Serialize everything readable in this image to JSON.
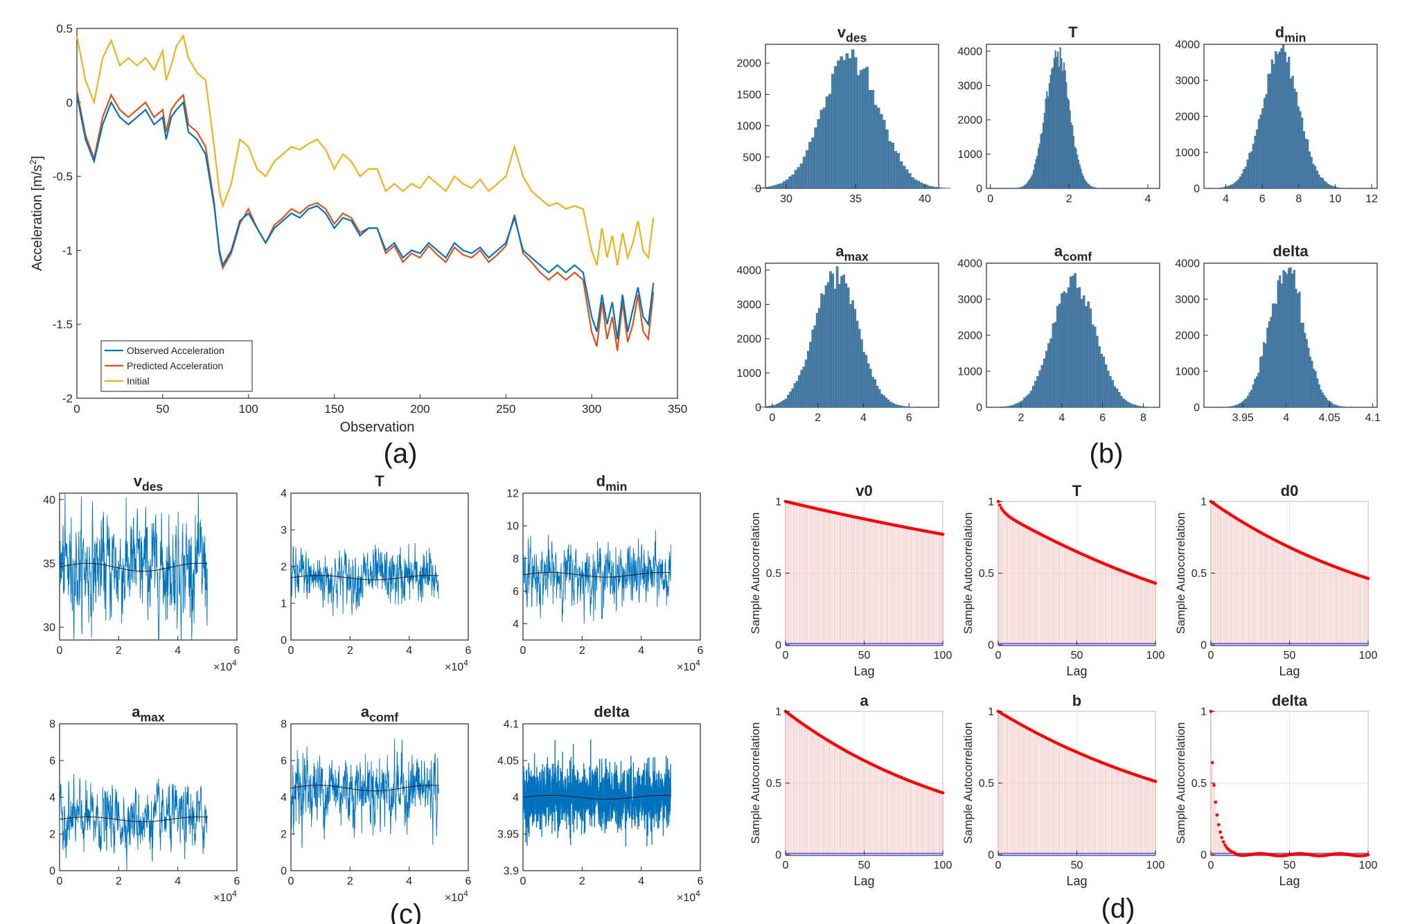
{
  "colors": {
    "observed": "#0072BD",
    "predicted": "#D95319",
    "initial": "#EDB120",
    "hist_fill": "#4A7FA8",
    "trace": "#0072BD",
    "acf_stem": "#FF0000",
    "acf_bound": "#7E7ACB"
  },
  "panel_labels": [
    "(a)",
    "(b)",
    "(c)",
    "(d)"
  ],
  "chart_data": [
    {
      "id": "a",
      "type": "line",
      "xlabel": "Observation",
      "ylabel": "Acceleration [m/s^2]",
      "ylabel_parts": [
        "Acceleration [m/s",
        "2",
        "]"
      ],
      "xlim": [
        0,
        350
      ],
      "ylim": [
        -2,
        0.5
      ],
      "xticks": [
        "0",
        "50",
        "100",
        "150",
        "200",
        "250",
        "300",
        "350"
      ],
      "yticks": [
        "-2",
        "-1.5",
        "-1",
        "-0.5",
        "0",
        "0.5"
      ],
      "legend_position": "bottom-left",
      "series": [
        {
          "name": "Observed Acceleration",
          "x": [
            0,
            5,
            10,
            15,
            20,
            25,
            30,
            35,
            40,
            45,
            50,
            52,
            55,
            58,
            62,
            65,
            70,
            75,
            80,
            83,
            85,
            90,
            95,
            100,
            105,
            110,
            115,
            120,
            125,
            130,
            135,
            140,
            145,
            150,
            155,
            160,
            165,
            170,
            175,
            180,
            185,
            190,
            195,
            200,
            205,
            210,
            215,
            220,
            225,
            230,
            235,
            240,
            245,
            250,
            255,
            260,
            265,
            270,
            275,
            280,
            285,
            290,
            295,
            300,
            303,
            306,
            309,
            312,
            315,
            318,
            321,
            324,
            327,
            330,
            333,
            336
          ],
          "values": [
            0.05,
            -0.25,
            -0.4,
            -0.15,
            0,
            -0.1,
            -0.15,
            -0.1,
            -0.05,
            -0.15,
            -0.1,
            -0.25,
            -0.1,
            -0.05,
            0,
            -0.2,
            -0.25,
            -0.35,
            -0.7,
            -1.0,
            -1.1,
            -1.0,
            -0.8,
            -0.75,
            -0.85,
            -0.95,
            -0.85,
            -0.8,
            -0.75,
            -0.78,
            -0.72,
            -0.7,
            -0.75,
            -0.85,
            -0.78,
            -0.8,
            -0.9,
            -0.85,
            -0.85,
            -1.0,
            -0.95,
            -1.05,
            -1.0,
            -1.02,
            -0.95,
            -1.0,
            -1.05,
            -0.95,
            -1.0,
            -1.02,
            -0.98,
            -1.05,
            -1.0,
            -0.95,
            -0.78,
            -1.0,
            -1.05,
            -1.1,
            -1.15,
            -1.1,
            -1.15,
            -1.1,
            -1.15,
            -1.45,
            -1.55,
            -1.3,
            -1.5,
            -1.35,
            -1.6,
            -1.3,
            -1.55,
            -1.4,
            -1.25,
            -1.45,
            -1.5,
            -1.22
          ]
        },
        {
          "name": "Predicted Acceleration",
          "x": [
            0,
            5,
            10,
            15,
            20,
            25,
            30,
            35,
            40,
            45,
            50,
            52,
            55,
            58,
            62,
            65,
            70,
            75,
            80,
            83,
            85,
            90,
            95,
            100,
            105,
            110,
            115,
            120,
            125,
            130,
            135,
            140,
            145,
            150,
            155,
            160,
            165,
            170,
            175,
            180,
            185,
            190,
            195,
            200,
            205,
            210,
            215,
            220,
            225,
            230,
            235,
            240,
            245,
            250,
            255,
            260,
            265,
            270,
            275,
            280,
            285,
            290,
            295,
            300,
            303,
            306,
            309,
            312,
            315,
            318,
            321,
            324,
            327,
            330,
            333,
            336
          ],
          "values": [
            0.08,
            -0.22,
            -0.38,
            -0.1,
            0.05,
            -0.05,
            -0.1,
            -0.05,
            0,
            -0.1,
            -0.05,
            -0.2,
            -0.05,
            0,
            0.05,
            -0.15,
            -0.2,
            -0.3,
            -0.68,
            -1.02,
            -1.12,
            -1.02,
            -0.82,
            -0.72,
            -0.85,
            -0.95,
            -0.83,
            -0.78,
            -0.72,
            -0.75,
            -0.7,
            -0.68,
            -0.72,
            -0.82,
            -0.75,
            -0.78,
            -0.88,
            -0.85,
            -0.85,
            -1.02,
            -0.97,
            -1.08,
            -1.02,
            -1.05,
            -0.97,
            -1.03,
            -1.08,
            -0.98,
            -1.03,
            -1.05,
            -1.0,
            -1.08,
            -1.03,
            -0.97,
            -0.76,
            -1.02,
            -1.08,
            -1.15,
            -1.2,
            -1.15,
            -1.2,
            -1.15,
            -1.2,
            -1.55,
            -1.65,
            -1.35,
            -1.6,
            -1.45,
            -1.68,
            -1.35,
            -1.62,
            -1.5,
            -1.3,
            -1.55,
            -1.6,
            -1.28
          ]
        },
        {
          "name": "Initial",
          "x": [
            0,
            5,
            10,
            15,
            20,
            25,
            30,
            35,
            40,
            45,
            50,
            52,
            55,
            58,
            62,
            65,
            70,
            75,
            80,
            83,
            85,
            90,
            95,
            100,
            105,
            110,
            115,
            120,
            125,
            130,
            135,
            140,
            145,
            150,
            155,
            160,
            165,
            170,
            175,
            180,
            185,
            190,
            195,
            200,
            205,
            210,
            215,
            220,
            225,
            230,
            235,
            240,
            245,
            250,
            255,
            260,
            265,
            270,
            275,
            280,
            285,
            290,
            295,
            300,
            303,
            306,
            309,
            312,
            315,
            318,
            321,
            324,
            327,
            330,
            333,
            336
          ],
          "values": [
            0.45,
            0.15,
            0,
            0.3,
            0.42,
            0.25,
            0.3,
            0.25,
            0.3,
            0.22,
            0.35,
            0.15,
            0.25,
            0.38,
            0.45,
            0.3,
            0.2,
            0.15,
            -0.3,
            -0.6,
            -0.7,
            -0.55,
            -0.25,
            -0.3,
            -0.45,
            -0.5,
            -0.4,
            -0.35,
            -0.3,
            -0.32,
            -0.28,
            -0.25,
            -0.32,
            -0.45,
            -0.35,
            -0.4,
            -0.5,
            -0.45,
            -0.45,
            -0.6,
            -0.55,
            -0.6,
            -0.55,
            -0.58,
            -0.5,
            -0.55,
            -0.6,
            -0.5,
            -0.55,
            -0.58,
            -0.52,
            -0.6,
            -0.55,
            -0.5,
            -0.3,
            -0.5,
            -0.6,
            -0.65,
            -0.7,
            -0.68,
            -0.72,
            -0.7,
            -0.72,
            -1.0,
            -1.1,
            -0.85,
            -1.05,
            -0.9,
            -1.1,
            -0.88,
            -1.05,
            -0.95,
            -0.8,
            -1.0,
            -1.05,
            -0.78
          ]
        }
      ]
    },
    {
      "id": "b",
      "type": "bar",
      "subplots": [
        {
          "title": "v",
          "subscript": "des",
          "xlim": [
            28.5,
            41
          ],
          "ylim": [
            0,
            2300
          ],
          "xticks": [
            "30",
            "35",
            "40"
          ],
          "yticks": [
            "0",
            "500",
            "1000",
            "1500",
            "2000"
          ],
          "mean": 34.7,
          "sd": 2.0,
          "peak": 2150
        },
        {
          "title": "T",
          "subscript": "",
          "xlim": [
            -0.1,
            4.3
          ],
          "ylim": [
            0,
            4200
          ],
          "xticks": [
            "0",
            "2",
            "4"
          ],
          "yticks": [
            "0",
            "1000",
            "2000",
            "3000",
            "4000"
          ],
          "mean": 1.7,
          "sd": 0.3,
          "peak": 4000
        },
        {
          "title": "d",
          "subscript": "min",
          "xlim": [
            2.8,
            12.3
          ],
          "ylim": [
            0,
            4000
          ],
          "xticks": [
            "4",
            "6",
            "8",
            "10",
            "12"
          ],
          "yticks": [
            "0",
            "1000",
            "2000",
            "3000",
            "4000"
          ],
          "mean": 7.0,
          "sd": 1.0,
          "peak": 3750
        },
        {
          "title": "a",
          "subscript": "max",
          "xlim": [
            -0.3,
            7.3
          ],
          "ylim": [
            0,
            4200
          ],
          "xticks": [
            "0",
            "2",
            "4",
            "6"
          ],
          "yticks": [
            "0",
            "1000",
            "2000",
            "3000",
            "4000"
          ],
          "mean": 2.8,
          "sd": 0.95,
          "peak": 3900
        },
        {
          "title": "a",
          "subscript": "comf",
          "xlim": [
            0.3,
            8.8
          ],
          "ylim": [
            0,
            4000
          ],
          "xticks": [
            "2",
            "4",
            "6",
            "8"
          ],
          "yticks": [
            "0",
            "1000",
            "2000",
            "3000",
            "4000"
          ],
          "mean": 4.6,
          "sd": 1.05,
          "peak": 3600
        },
        {
          "title": "delta",
          "subscript": "",
          "xlim": [
            3.905,
            4.105
          ],
          "ylim": [
            0,
            4000
          ],
          "xticks": [
            "3.95",
            "4",
            "4.05",
            "4.1"
          ],
          "yticks": [
            "0",
            "1000",
            "2000",
            "3000",
            "4000"
          ],
          "mean": 4.0,
          "sd": 0.02,
          "peak": 3800
        }
      ]
    },
    {
      "id": "c",
      "type": "line",
      "x_multiplier": "×10",
      "x_multiplier_exp": "4",
      "subplots": [
        {
          "title": "v",
          "subscript": "des",
          "xlim": [
            0,
            6
          ],
          "ylim": [
            29,
            40.5
          ],
          "xticks": [
            "0",
            "2",
            "4",
            "6"
          ],
          "yticks": [
            "30",
            "35",
            "40"
          ],
          "mean": 34.7,
          "amp": 2.6,
          "x_end": 5
        },
        {
          "title": "T",
          "subscript": "",
          "xlim": [
            0,
            6
          ],
          "ylim": [
            0,
            4
          ],
          "xticks": [
            "0",
            "2",
            "4",
            "6"
          ],
          "yticks": [
            "0",
            "1",
            "2",
            "3",
            "4"
          ],
          "mean": 1.7,
          "amp": 0.5,
          "x_end": 5
        },
        {
          "title": "d",
          "subscript": "min",
          "xlim": [
            0,
            6
          ],
          "ylim": [
            3,
            12
          ],
          "xticks": [
            "0",
            "2",
            "4",
            "6"
          ],
          "yticks": [
            "4",
            "6",
            "8",
            "10",
            "12"
          ],
          "mean": 7.0,
          "amp": 1.2,
          "x_end": 5
        },
        {
          "title": "a",
          "subscript": "max",
          "xlim": [
            0,
            6
          ],
          "ylim": [
            0,
            8
          ],
          "xticks": [
            "0",
            "2",
            "4",
            "6"
          ],
          "yticks": [
            "0",
            "2",
            "4",
            "6",
            "8"
          ],
          "mean": 2.8,
          "amp": 1.1,
          "x_end": 5
        },
        {
          "title": "a",
          "subscript": "comf",
          "xlim": [
            0,
            6
          ],
          "ylim": [
            0,
            8
          ],
          "xticks": [
            "0",
            "2",
            "4",
            "6"
          ],
          "yticks": [
            "0",
            "2",
            "4",
            "6",
            "8"
          ],
          "mean": 4.5,
          "amp": 1.3,
          "x_end": 5
        },
        {
          "title": "delta",
          "subscript": "",
          "xlim": [
            0,
            6
          ],
          "ylim": [
            3.9,
            4.1
          ],
          "xticks": [
            "0",
            "2",
            "4",
            "6"
          ],
          "yticks": [
            "3.9",
            "3.95",
            "4",
            "4.05",
            "4.1"
          ],
          "mean": 4.0,
          "amp": 0.022,
          "x_end": 5,
          "dense": true
        }
      ]
    },
    {
      "id": "d",
      "type": "bar",
      "xlabel": "Lag",
      "ylabel": "Sample Autocorrelation",
      "xlim": [
        0,
        100
      ],
      "ylim": [
        0,
        1
      ],
      "xticks": [
        "0",
        "50",
        "100"
      ],
      "yticks": [
        "0",
        "0.5",
        "1"
      ],
      "subplots": [
        {
          "title": "v0",
          "decay": 0.0026,
          "end_value": 0.77
        },
        {
          "title": "T",
          "decay": 0.0084,
          "end_value": 0.43,
          "fast_start": true
        },
        {
          "title": "d0",
          "decay": 0.0077,
          "end_value": 0.46
        },
        {
          "title": "a",
          "decay": 0.0084,
          "end_value": 0.43
        },
        {
          "title": "b",
          "decay": 0.0067,
          "end_value": 0.51
        },
        {
          "title": "delta",
          "decay": 0.28,
          "end_value": 0.0,
          "noisy": true
        }
      ]
    }
  ]
}
